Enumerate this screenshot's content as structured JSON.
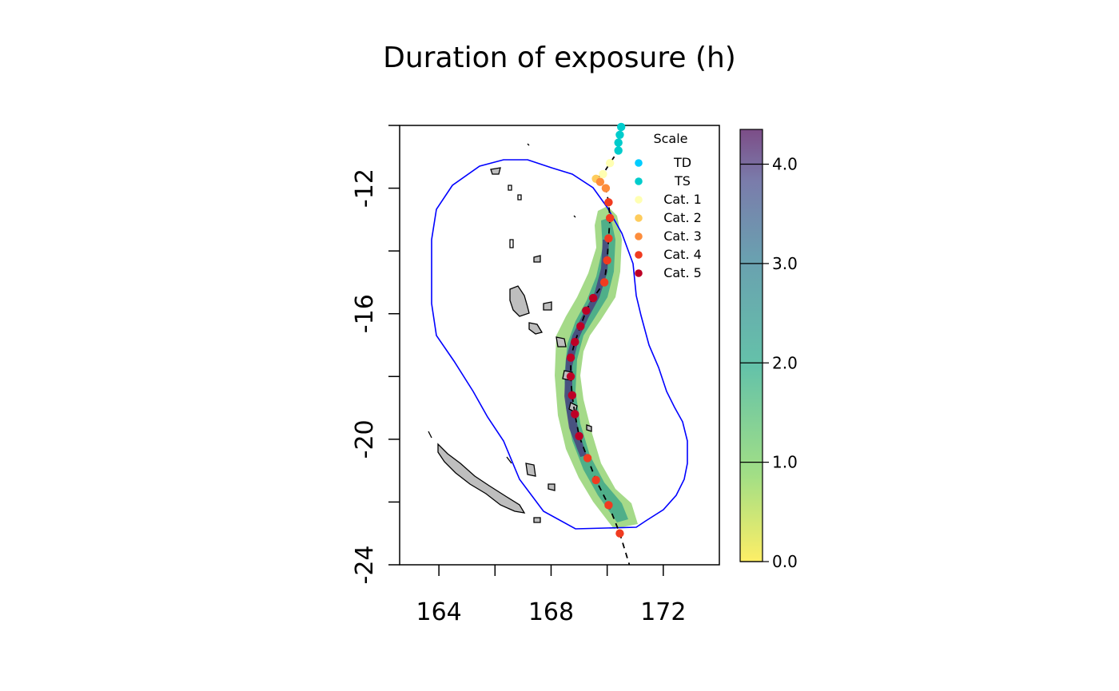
{
  "title": "Duration of exposure (h)",
  "map": {
    "x_range": [
      162.6,
      174.0
    ],
    "y_range": [
      -24.0,
      -10.0
    ],
    "x_ticks": [
      164,
      168,
      172
    ],
    "y_ticks": [
      -12,
      -16,
      -20,
      -24
    ],
    "x_tick_labels": [
      "164",
      "168",
      "172"
    ],
    "y_tick_labels": [
      "-12",
      "-16",
      "-20",
      "-24"
    ],
    "land_color": "#bebebe",
    "buffer_color": "#0000ff",
    "track_line_style": "dashed"
  },
  "colorbar": {
    "min": 0.0,
    "max": 4.35,
    "ticks": [
      0.0,
      1.0,
      2.0,
      3.0,
      4.0
    ],
    "tick_labels": [
      "0.0",
      "1.0",
      "2.0",
      "3.0",
      "4.0"
    ],
    "palette": "viridis (reversed, semi-transparent)"
  },
  "legend": {
    "title": "Scale",
    "entries": [
      {
        "label": "TD",
        "color": "#00ccff"
      },
      {
        "label": "TS",
        "color": "#00cccc"
      },
      {
        "label": "Cat. 1",
        "color": "#ffffb2"
      },
      {
        "label": "Cat. 2",
        "color": "#fecc5c"
      },
      {
        "label": "Cat. 3",
        "color": "#fd8d3c"
      },
      {
        "label": "Cat. 4",
        "color": "#f03b20"
      },
      {
        "label": "Cat. 5",
        "color": "#bd0026"
      }
    ]
  },
  "track": [
    {
      "lon": 170.5,
      "lat": -10.05,
      "cat": "TS"
    },
    {
      "lon": 170.45,
      "lat": -10.3,
      "cat": "TS"
    },
    {
      "lon": 170.4,
      "lat": -10.55,
      "cat": "TS"
    },
    {
      "lon": 170.4,
      "lat": -10.8,
      "cat": "TS"
    },
    {
      "lon": 170.1,
      "lat": -11.2,
      "cat": "Cat. 1"
    },
    {
      "lon": 169.85,
      "lat": -11.55,
      "cat": "Cat. 1"
    },
    {
      "lon": 169.6,
      "lat": -11.7,
      "cat": "Cat. 2"
    },
    {
      "lon": 169.75,
      "lat": -11.8,
      "cat": "Cat. 3"
    },
    {
      "lon": 169.95,
      "lat": -12.0,
      "cat": "Cat. 3"
    },
    {
      "lon": 170.05,
      "lat": -12.45,
      "cat": "Cat. 4"
    },
    {
      "lon": 170.1,
      "lat": -12.95,
      "cat": "Cat. 4"
    },
    {
      "lon": 170.05,
      "lat": -13.6,
      "cat": "Cat. 4"
    },
    {
      "lon": 170.0,
      "lat": -14.3,
      "cat": "Cat. 4"
    },
    {
      "lon": 169.9,
      "lat": -15.0,
      "cat": "Cat. 4"
    },
    {
      "lon": 169.5,
      "lat": -15.5,
      "cat": "Cat. 5"
    },
    {
      "lon": 169.25,
      "lat": -15.9,
      "cat": "Cat. 5"
    },
    {
      "lon": 169.05,
      "lat": -16.4,
      "cat": "Cat. 5"
    },
    {
      "lon": 168.85,
      "lat": -16.9,
      "cat": "Cat. 5"
    },
    {
      "lon": 168.7,
      "lat": -17.4,
      "cat": "Cat. 5"
    },
    {
      "lon": 168.7,
      "lat": -18.0,
      "cat": "Cat. 5"
    },
    {
      "lon": 168.75,
      "lat": -18.6,
      "cat": "Cat. 5"
    },
    {
      "lon": 168.85,
      "lat": -19.2,
      "cat": "Cat. 5"
    },
    {
      "lon": 169.0,
      "lat": -19.9,
      "cat": "Cat. 5"
    },
    {
      "lon": 169.3,
      "lat": -20.6,
      "cat": "Cat. 4"
    },
    {
      "lon": 169.6,
      "lat": -21.3,
      "cat": "Cat. 4"
    },
    {
      "lon": 170.05,
      "lat": -22.1,
      "cat": "Cat. 4"
    },
    {
      "lon": 170.45,
      "lat": -23.0,
      "cat": "Cat. 4"
    }
  ]
}
